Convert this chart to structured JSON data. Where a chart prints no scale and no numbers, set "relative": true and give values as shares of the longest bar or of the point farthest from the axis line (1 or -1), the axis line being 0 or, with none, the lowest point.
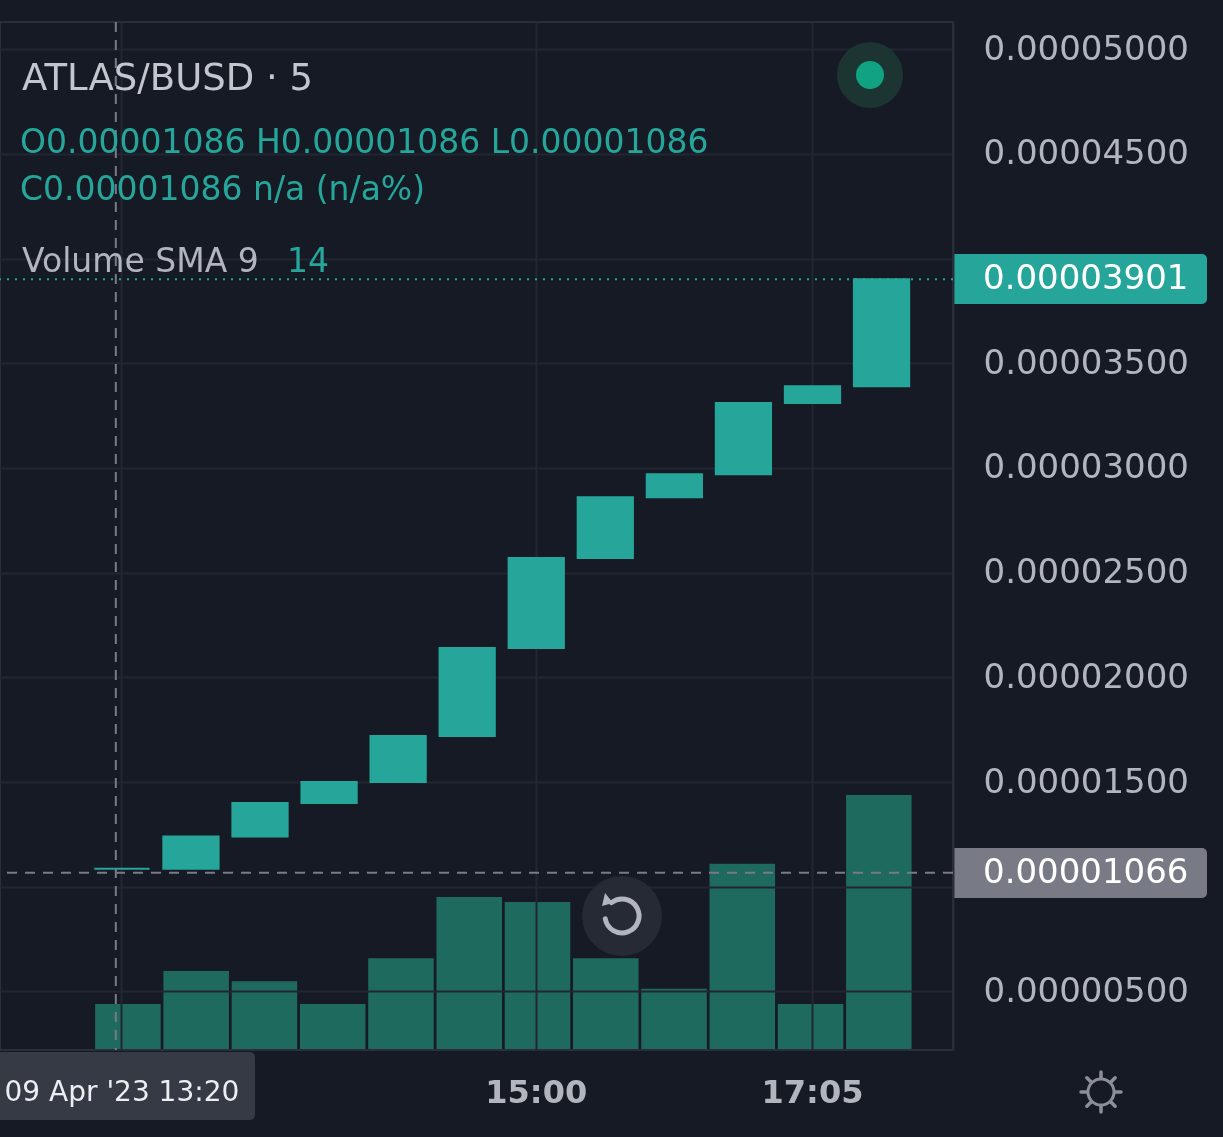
{
  "chart_data": [
    {
      "type": "candlestick",
      "title": "ATLAS/BUSD · 5",
      "categories": [
        "09 Apr '23 13:20",
        null,
        null,
        null,
        null,
        null,
        "15:00",
        null,
        null,
        null,
        "17:05",
        null
      ],
      "ohlc": [
        [
          1.086e-05,
          1.086e-05,
          1.086e-05,
          1.086e-05
        ],
        [
          1.086e-05,
          1.24e-05,
          1.086e-05,
          1.24e-05
        ],
        [
          1.24e-05,
          1.4e-05,
          1.24e-05,
          1.4e-05
        ],
        [
          1.4e-05,
          1.5e-05,
          1.4e-05,
          1.5e-05
        ],
        [
          1.5e-05,
          1.72e-05,
          1.5e-05,
          1.72e-05
        ],
        [
          1.72e-05,
          2.14e-05,
          1.72e-05,
          2.14e-05
        ],
        [
          2.14e-05,
          2.57e-05,
          2.14e-05,
          2.57e-05
        ],
        [
          2.57e-05,
          2.86e-05,
          2.57e-05,
          2.86e-05
        ],
        [
          2.86e-05,
          2.97e-05,
          2.86e-05,
          2.97e-05
        ],
        [
          2.97e-05,
          3.31e-05,
          2.97e-05,
          3.31e-05
        ],
        [
          3.31e-05,
          3.39e-05,
          3.31e-05,
          3.39e-05
        ],
        [
          3.39e-05,
          3.901e-05,
          3.39e-05,
          3.901e-05
        ]
      ],
      "color": "#26a69a",
      "ylim": [
        2.2e-06,
        5.13e-05
      ],
      "yticks": [
        {
          "value": 5e-06,
          "label": "0.00000500"
        },
        {
          "value": 1e-05,
          "label": null
        },
        {
          "value": 1.5e-05,
          "label": "0.00001500"
        },
        {
          "value": 2e-05,
          "label": "0.00002000"
        },
        {
          "value": 2.5e-05,
          "label": "0.00002500"
        },
        {
          "value": 3e-05,
          "label": "0.00003000"
        },
        {
          "value": 3.5e-05,
          "label": "0.00003500"
        },
        {
          "value": 4e-05,
          "label": null
        },
        {
          "value": 4.5e-05,
          "label": "0.00004500"
        },
        {
          "value": 5e-05,
          "label": "0.00005000"
        }
      ],
      "grid": true,
      "annotations": [
        "O0.00001086 H0.00001086 L0.00001086",
        "C0.00001086 n/a (n/a%)",
        "Volume SMA 9",
        "14"
      ],
      "ref_lines": [
        {
          "axis": "y",
          "value": 3.901e-05,
          "label": "0.00003901",
          "color": "#26a69a",
          "line_style": "dotted"
        },
        {
          "axis": "y",
          "value": 1.066e-05,
          "label": "0.00001066",
          "color": "#787b86",
          "line_style": "dashed"
        },
        {
          "axis": "x",
          "value": "09 Apr '23 13:20",
          "color": "#787b86",
          "line_style": "dashed"
        }
      ]
    },
    {
      "type": "bar",
      "categories": [
        null,
        null,
        null,
        null,
        null,
        null,
        null,
        null,
        null,
        null,
        null,
        null
      ],
      "values": [
        0.18,
        0.31,
        0.27,
        0.18,
        0.36,
        0.6,
        0.58,
        0.36,
        0.24,
        0.73,
        0.18,
        1
      ],
      "color": "#1f6a5e",
      "relative": true
    }
  ]
}
